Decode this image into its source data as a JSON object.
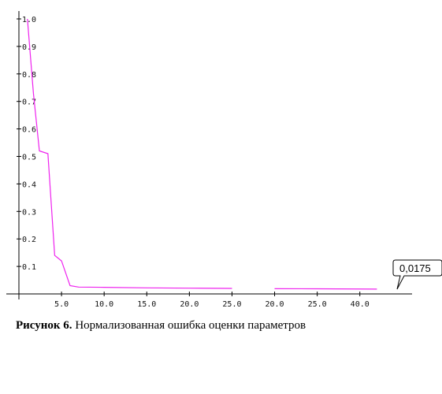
{
  "chart_data": {
    "type": "line",
    "title": "",
    "xlabel": "",
    "ylabel": "",
    "xlim": [
      0,
      44
    ],
    "ylim": [
      0,
      1.0
    ],
    "grid": false,
    "y_ticks": [
      "0.1",
      "0.2",
      "0.3",
      "0.4",
      "0.5",
      "0.6",
      "0.7",
      "0.8",
      "0.9",
      "1.0"
    ],
    "x_ticks": [
      "5.0",
      "10.0",
      "15.0",
      "20.0",
      "25.0",
      "20.0",
      "25.0",
      "40.0"
    ],
    "series": [
      {
        "color": "#ee22ee",
        "x": [
          1,
          1.7,
          2.4,
          3.4,
          4.2,
          5.0,
          6.0,
          7.0,
          10,
          15,
          20,
          25,
          27.5,
          30,
          35,
          42
        ],
        "y": [
          1.0,
          0.73,
          0.52,
          0.51,
          0.14,
          0.12,
          0.03,
          0.025,
          0.024,
          0.022,
          0.021,
          0.02,
          null,
          0.019,
          0.0185,
          0.0175
        ]
      }
    ],
    "annotation": {
      "text": "0,0175",
      "x": 42,
      "y": 0.0175
    }
  },
  "caption": {
    "label": "Рисунок 6.",
    "text": " Нормализованная ошибка оценки параметров"
  }
}
